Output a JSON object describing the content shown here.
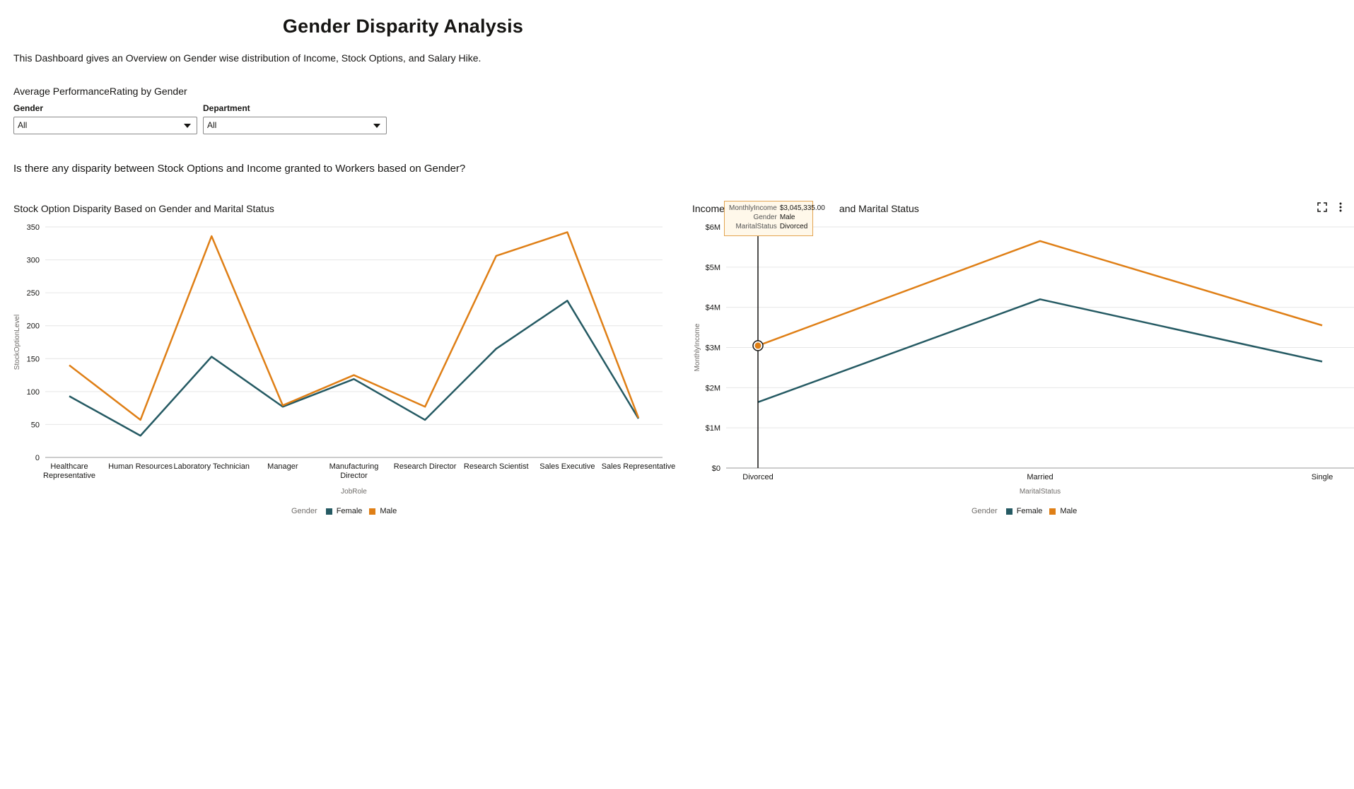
{
  "header": {
    "title": "Gender Disparity Analysis",
    "subtitle": "This Dashboard gives an Overview on Gender wise distribution of Income, Stock Options, and Salary Hike."
  },
  "filters": {
    "section_label": "Average PerformanceRating by Gender",
    "gender": {
      "label": "Gender",
      "value": "All"
    },
    "department": {
      "label": "Department",
      "value": "All"
    }
  },
  "question": "Is there any disparity between Stock Options and Income granted to Workers based on Gender?",
  "colors": {
    "female": "#255a63",
    "male": "#df7f16",
    "grid": "#e6e6e6",
    "axis": "#9a9a9a"
  },
  "chart_data": [
    {
      "type": "line",
      "title": "Stock Option Disparity Based on Gender and Marital Status",
      "xlabel": "JobRole",
      "ylabel": "StockOptionLevel",
      "ylim": [
        0,
        350
      ],
      "yticks": [
        "0",
        "50",
        "100",
        "150",
        "200",
        "250",
        "300",
        "350"
      ],
      "categories": [
        "Healthcare Representative",
        "Human Resources",
        "Laboratory Technician",
        "Manager",
        "Manufacturing Director",
        "Research Director",
        "Research Scientist",
        "Sales Executive",
        "Sales Representative"
      ],
      "series": [
        {
          "name": "Female",
          "values": [
            93,
            33,
            153,
            77,
            119,
            57,
            165,
            238,
            59
          ]
        },
        {
          "name": "Male",
          "values": [
            140,
            57,
            336,
            79,
            125,
            77,
            306,
            342,
            60
          ]
        }
      ],
      "grid": true,
      "legend": {
        "title": "Gender",
        "position": "bottom"
      }
    },
    {
      "type": "line",
      "title": "Income Disparity Based on Gender and Marital Status",
      "title_visible_left": "Income",
      "title_visible_right": "and Marital Status",
      "xlabel": "MaritalStatus",
      "ylabel": "MonthlyIncome",
      "ylim": [
        0,
        6000000
      ],
      "yticks": [
        "$0",
        "$1M",
        "$2M",
        "$3M",
        "$4M",
        "$5M",
        "$6M"
      ],
      "categories": [
        "Divorced",
        "Married",
        "Single"
      ],
      "series": [
        {
          "name": "Female",
          "values": [
            1640000,
            4200000,
            2650000
          ]
        },
        {
          "name": "Male",
          "values": [
            3045335,
            5650000,
            3550000
          ]
        }
      ],
      "grid": true,
      "legend": {
        "title": "Gender",
        "position": "bottom"
      },
      "tooltip": {
        "rows": [
          {
            "key": "MonthlyIncome",
            "value": "$3,045,335.00"
          },
          {
            "key": "Gender",
            "value": "Male"
          },
          {
            "key": "MaritalStatus",
            "value": "Divorced"
          }
        ]
      }
    }
  ]
}
